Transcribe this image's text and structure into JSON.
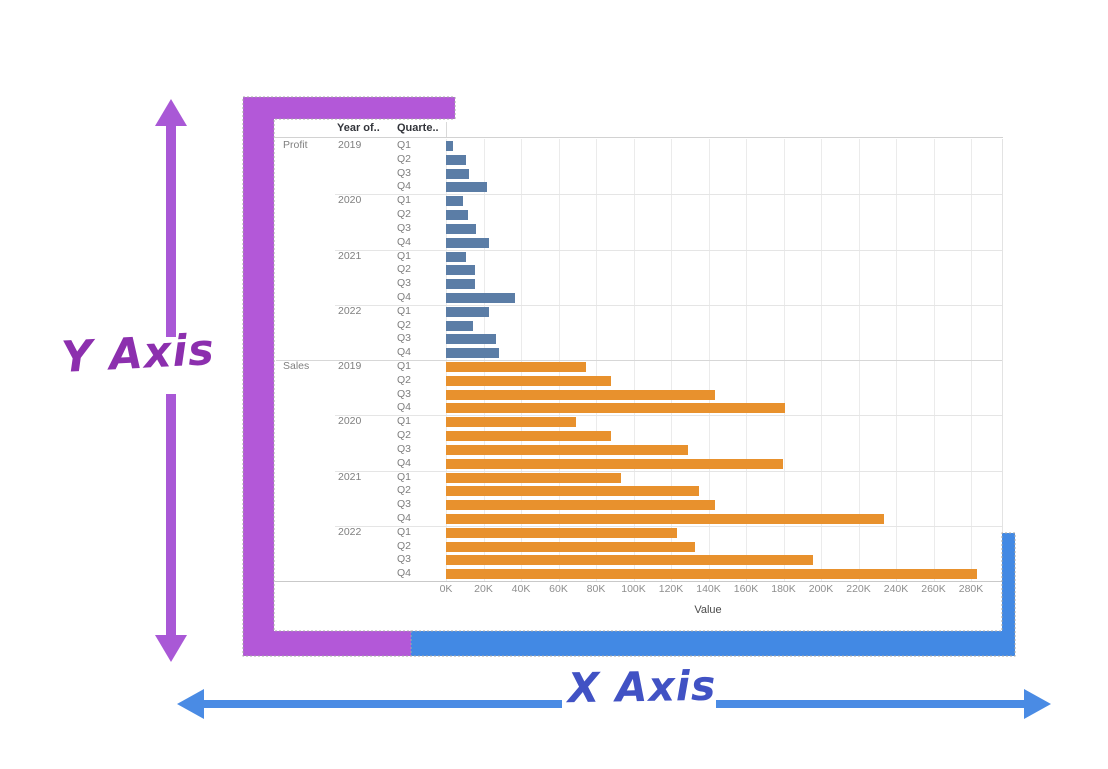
{
  "annotations": {
    "y_axis": {
      "label": "Y Axis",
      "text_color": "#8c2fae",
      "arrow_color": "#a958d6",
      "bracket_color": "#b358d8"
    },
    "x_axis": {
      "label": "X Axis",
      "text_color": "#4152c4",
      "arrow_color": "#4a8be4",
      "bracket_color": "#4289e4"
    }
  },
  "chart_data": {
    "type": "bar",
    "orientation": "horizontal",
    "column_headers": [
      "Year of..",
      "Quarte.."
    ],
    "xlabel": "Value",
    "x_tick_labels": [
      "0K",
      "20K",
      "40K",
      "60K",
      "80K",
      "100K",
      "120K",
      "140K",
      "160K",
      "180K",
      "200K",
      "220K",
      "240K",
      "260K",
      "280K"
    ],
    "x_tick_step_k": 20,
    "xlim_k": [
      0,
      297
    ],
    "grid": true,
    "legend_position": "none",
    "series": [
      {
        "measure": "Profit",
        "color": "#5b7da6",
        "years": [
          {
            "year": "2019",
            "quarters": [
              "Q1",
              "Q2",
              "Q3",
              "Q4"
            ],
            "values_k": [
              3.8,
              10.8,
              12.5,
              21.7
            ]
          },
          {
            "year": "2020",
            "quarters": [
              "Q1",
              "Q2",
              "Q3",
              "Q4"
            ],
            "values_k": [
              9.2,
              11.7,
              16.1,
              22.7
            ]
          },
          {
            "year": "2021",
            "quarters": [
              "Q1",
              "Q2",
              "Q3",
              "Q4"
            ],
            "values_k": [
              10.9,
              15.5,
              15.2,
              37.0
            ]
          },
          {
            "year": "2022",
            "quarters": [
              "Q1",
              "Q2",
              "Q3",
              "Q4"
            ],
            "values_k": [
              23.1,
              14.3,
              26.8,
              28.2
            ]
          }
        ]
      },
      {
        "measure": "Sales",
        "color": "#e8912d",
        "years": [
          {
            "year": "2019",
            "quarters": [
              "Q1",
              "Q2",
              "Q3",
              "Q4"
            ],
            "values_k": [
              74.4,
              88.2,
              143.6,
              180.6
            ]
          },
          {
            "year": "2020",
            "quarters": [
              "Q1",
              "Q2",
              "Q3",
              "Q4"
            ],
            "values_k": [
              69.3,
              88.2,
              128.8,
              179.8
            ]
          },
          {
            "year": "2021",
            "quarters": [
              "Q1",
              "Q2",
              "Q3",
              "Q4"
            ],
            "values_k": [
              93.5,
              134.9,
              143.6,
              233.5
            ]
          },
          {
            "year": "2022",
            "quarters": [
              "Q1",
              "Q2",
              "Q3",
              "Q4"
            ],
            "values_k": [
              123.4,
              133.0,
              195.8,
              283.0
            ]
          }
        ]
      }
    ]
  }
}
